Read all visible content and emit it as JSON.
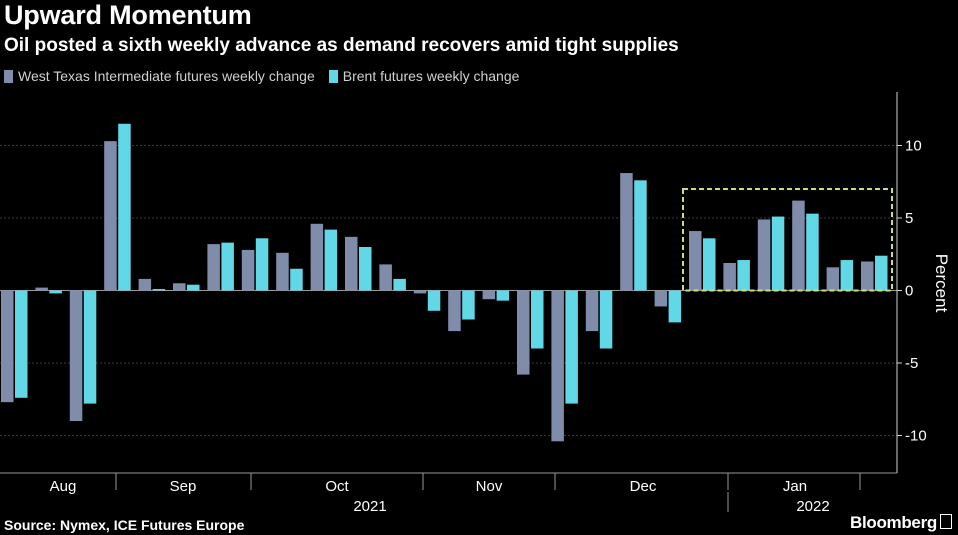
{
  "header": {
    "title": "Upward Momentum",
    "subtitle": "Oil posted a sixth weekly advance as demand recovers amid tight supplies"
  },
  "footer": {
    "source": "Source: Nymex, ICE Futures Europe",
    "brand": "Bloomberg"
  },
  "colors": {
    "wti": "#7f8dab",
    "brent": "#62d8e6",
    "highlight_box": "#c9e07a",
    "background": "#000000"
  },
  "chart_data": {
    "type": "bar",
    "ylabel": "Percent",
    "ylim": [
      -12.5,
      13.5
    ],
    "yticks": [
      10,
      5,
      0,
      -5,
      -10
    ],
    "ytick_labels": [
      "10",
      "5",
      "0",
      "-5",
      "-10"
    ],
    "grid": true,
    "legend_position": "top-left",
    "series": [
      {
        "name": "West Texas Intermediate futures weekly change",
        "values": [
          -7.7,
          0.2,
          -9.0,
          10.3,
          0.8,
          0.5,
          3.2,
          2.8,
          2.6,
          4.6,
          3.7,
          1.8,
          -0.2,
          -2.8,
          -0.6,
          -5.8,
          -10.4,
          -2.8,
          8.1,
          -1.1,
          4.1,
          1.9,
          4.9,
          6.2,
          1.6,
          2.0
        ]
      },
      {
        "name": "Brent futures weekly change",
        "values": [
          -7.4,
          -0.2,
          -7.8,
          11.5,
          0.1,
          0.4,
          3.3,
          3.6,
          1.5,
          4.2,
          3.0,
          0.8,
          -1.4,
          -2.0,
          -0.7,
          -4.0,
          -7.8,
          -4.0,
          7.6,
          -2.2,
          3.6,
          2.1,
          5.1,
          5.3,
          2.1,
          2.4
        ]
      }
    ],
    "x_month_labels": [
      "Aug",
      "Sep",
      "Oct",
      "Nov",
      "Dec",
      "Jan"
    ],
    "x_year_labels": [
      "2021",
      "2022"
    ],
    "highlight_box": {
      "from_week_index": 20,
      "to_week_index": 25,
      "y_low": 0,
      "y_high": 7.0
    }
  }
}
